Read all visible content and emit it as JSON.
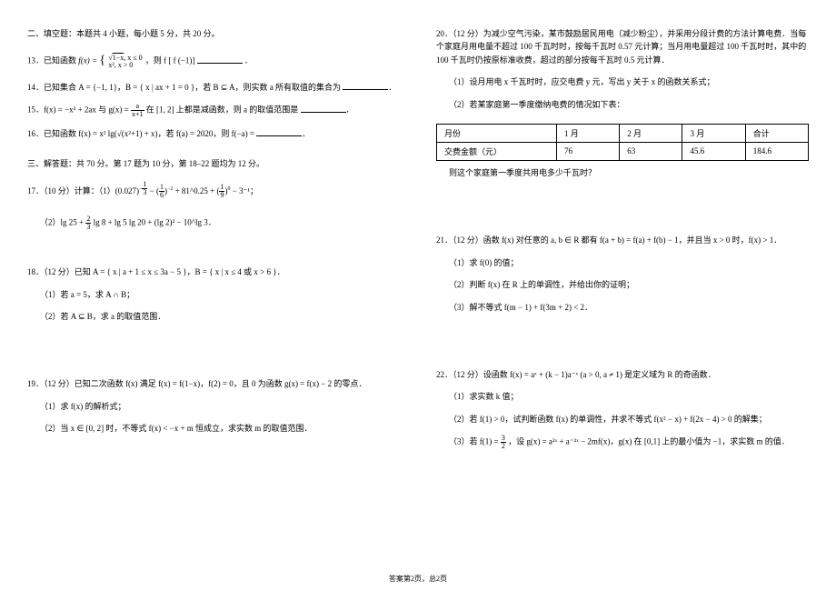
{
  "footer": "答案第2页，总2页",
  "left": {
    "section2_title": "二、填空题：本题共 4 小题，每小题 5 分，共 20 分。",
    "q13": "13．已知函数 ",
    "q13b": "，则 f [ f (−1)] ",
    "q13c": "．",
    "q14": "14．已知集合 A = {−1, 1}，B = { x | ax + 1 = 0 }，若 B ⊆ A，则实数 a 所有取值的集合为",
    "q15a": "15．f(x) = −x² + 2ax 与 g(x) = ",
    "q15b": " 在 [1, 2] 上都是减函数，则 a 的取值范围是",
    "q16": "16．已知函数 f(x) = x² lg(√(x²+1) + x)，若 f(a) = 2020，则 f(−a) = ",
    "section3_title": "三、解答题：共 70 分。第 17 题为 10 分，第 18–22 题均为 12 分。",
    "q17a": "17．（10 分）计算：（1）(0.027)",
    "q17b": " + 81^0.25 + ",
    "q17c": " − 3⁻¹；",
    "q17_2": "（2）lg 25 + ",
    "q17_2b": " lg 8 + lg 5 lg 20 + (lg 2)² − 10^lg 3．",
    "q18": "18．（12 分）已知 A = { x | a + 1 ≤ x ≤ 3a − 5 }，B = { x | x ≤ 4 或 x > 6 }．",
    "q18_1": "（1）若 a = 5，求 A ∩ B；",
    "q18_2": "（2）若 A ⊆ B，求 a 的取值范围．",
    "q19": "19．（12 分）已知二次函数 f(x) 满足 f(x) = f(1−x)，f(2) = 0，且 0 为函数 g(x) = f(x) − 2 的零点．",
    "q19_1": "（1）求 f(x) 的解析式；",
    "q19_2": "（2）当 x ∈ [0, 2] 时，不等式 f(x) < −x + m 恒成立，求实数 m 的取值范围．"
  },
  "right": {
    "q20a": "20．（12 分）为减少空气污染，某市鼓励居民用电（减少粉尘），并采用分段计费的方法计算电费．当每个家庭月用电量不超过 100 千瓦时时，按每千瓦时 0.57 元计算；当月用电量超过 100 千瓦时时，其中的 100 千瓦时仍按原标准收费，超过的部分按每千瓦时 0.5 元计算．",
    "q20_1": "（1）设月用电 x 千瓦时时，应交电费 y 元，写出 y 关于 x 的函数关系式；",
    "q20_2": "（2）若某家庭第一季度缴纳电费的情况如下表：",
    "q20_q": "则这个家庭第一季度共用电多少千瓦时？",
    "table": {
      "h1": "月份",
      "h2": "1 月",
      "h3": "2 月",
      "h4": "3 月",
      "h5": "合计",
      "r1": "交费金额（元）",
      "c1": "76",
      "c2": "63",
      "c3": "45.6",
      "c4": "184.6"
    },
    "q21": "21．（12 分）函数 f(x) 对任意的 a, b ∈ R 都有 f(a + b) = f(a) + f(b) − 1，并且当 x > 0 时，f(x) > 1．",
    "q21_1": "（1）求 f(0) 的值；",
    "q21_2": "（2）判断 f(x) 在 R 上的单调性，并给出你的证明；",
    "q21_3": "（3）解不等式 f(m − 1) + f(3m + 2) < 2．",
    "q22": "22．（12 分）设函数 f(x) = aˣ + (k − 1)a⁻ˣ (a > 0, a ≠ 1) 是定义域为 R 的奇函数．",
    "q22_1": "（1）求实数 k 值；",
    "q22_2": "（2）若 f(1) > 0，试判断函数 f(x) 的单调性，并求不等式 f(x² − x) + f(2x − 4) > 0 的解集；",
    "q22_3a": "（3）若 f(1) = ",
    "q22_3b": "，设 g(x) = a²ˣ + a⁻²ˣ − 2mf(x)，g(x) 在 [0,1] 上的最小值为 −1，求实数 m 的值．"
  }
}
